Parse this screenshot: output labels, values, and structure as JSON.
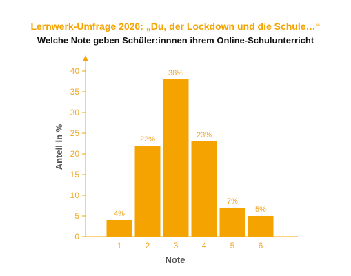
{
  "colors": {
    "accent": "#f5a300",
    "bar": "#f5a300",
    "label": "#f0a92a",
    "axis_title": "#555555",
    "axis_line": "#f5a300"
  },
  "chart_data": {
    "type": "bar",
    "title": "Lernwerk-Umfrage 2020: „Du, der Lockdown und die Schule…“",
    "subtitle": "Welche Note geben Schüler:innnen ihrem Online-Schulunterricht",
    "xlabel": "Note",
    "ylabel": "Anteil in %",
    "categories": [
      "1",
      "2",
      "3",
      "4",
      "5",
      "6"
    ],
    "values": [
      4,
      22,
      38,
      23,
      7,
      5
    ],
    "data_labels": [
      "4%",
      "22%",
      "38%",
      "23%",
      "7%",
      "5%"
    ],
    "y_ticks": [
      "0",
      "5",
      "10",
      "15",
      "20",
      "25",
      "30",
      "35",
      "40"
    ],
    "ylim": [
      0,
      40
    ],
    "grid": false,
    "legend": "none"
  }
}
